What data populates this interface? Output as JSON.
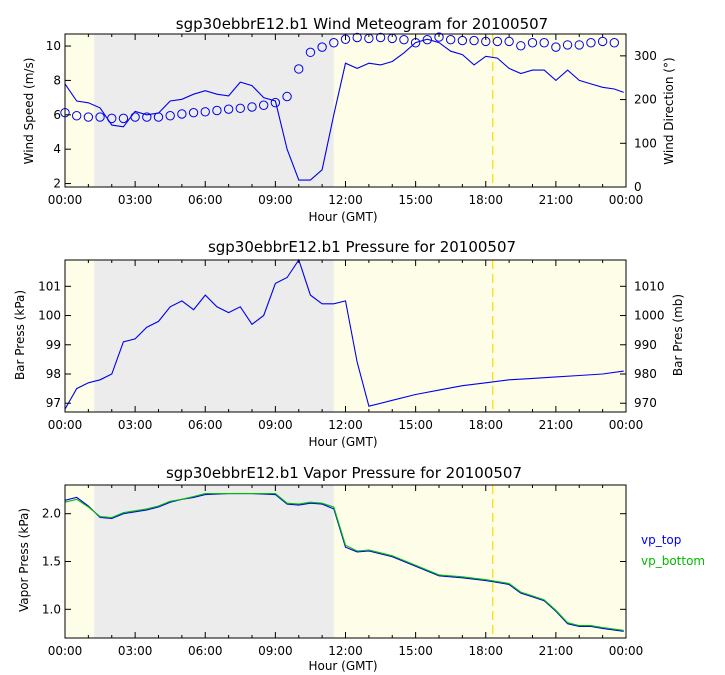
{
  "chart_data": [
    {
      "type": "line",
      "title": "sgp30ebbrE12.b1 Wind Meteogram for 20100507",
      "xlabel": "Hour (GMT)",
      "ylabel": "Wind Speed (m/s)",
      "ylabel_right": "Wind Direction (°)",
      "x_ticks": [
        "00:00",
        "03:00",
        "06:00",
        "09:00",
        "12:00",
        "15:00",
        "18:00",
        "21:00",
        "00:00"
      ],
      "y_ticks": [
        "2",
        "4",
        "6",
        "8",
        "10"
      ],
      "y_ticks_right": [
        "0",
        "100",
        "200",
        "300"
      ],
      "xlim": [
        0,
        24
      ],
      "ylim": [
        1.8,
        10.7
      ],
      "ylim_right": [
        0,
        350
      ],
      "shading": {
        "night_gray": [
          1.25,
          11.5
        ],
        "day_yellow": [
          [
            0,
            1.25
          ],
          [
            11.5,
            24
          ]
        ],
        "gray_color": "#ececec",
        "yellow_color": "#fefee8"
      },
      "marker_line_x": 18.3,
      "marker_color": "#ffd700",
      "series": [
        {
          "name": "Wind Speed",
          "style": "line",
          "color": "#0000ee",
          "x": [
            0,
            0.5,
            1,
            1.5,
            2,
            2.5,
            3,
            3.5,
            4,
            4.5,
            5,
            5.5,
            6,
            6.5,
            7,
            7.5,
            8,
            8.5,
            9,
            9.5,
            10,
            10.5,
            11,
            11.5,
            12,
            12.5,
            13,
            13.5,
            14,
            14.5,
            15,
            15.5,
            16,
            16.5,
            17,
            17.5,
            18,
            18.5,
            19,
            19.5,
            20,
            20.5,
            21,
            21.5,
            22,
            22.5,
            23,
            23.5,
            23.9
          ],
          "values": [
            7.8,
            6.8,
            6.7,
            6.4,
            5.4,
            5.3,
            6.2,
            6.0,
            6.1,
            6.8,
            6.9,
            7.2,
            7.4,
            7.2,
            7.1,
            7.9,
            7.7,
            7.0,
            6.8,
            4.0,
            2.2,
            2.2,
            2.8,
            6.0,
            9.0,
            8.7,
            9.0,
            8.9,
            9.1,
            9.6,
            10.2,
            10.4,
            10.2,
            9.7,
            9.5,
            8.9,
            9.4,
            9.3,
            8.7,
            8.4,
            8.6,
            8.6,
            8.0,
            8.6,
            8.0,
            7.8,
            7.6,
            7.5,
            7.3
          ]
        },
        {
          "name": "Wind Direction",
          "style": "circles",
          "color": "#0000ee",
          "axis": "right",
          "x": [
            0,
            0.5,
            1,
            1.5,
            2,
            2.5,
            3,
            3.5,
            4,
            4.5,
            5,
            5.5,
            6,
            6.5,
            7,
            7.5,
            8,
            8.5,
            9,
            9.5,
            10,
            10.5,
            11,
            11.5,
            12,
            12.5,
            13,
            13.5,
            14,
            14.5,
            15,
            15.5,
            16,
            16.5,
            17,
            17.5,
            18,
            18.5,
            19,
            19.5,
            20,
            20.5,
            21,
            21.5,
            22,
            22.5,
            23,
            23.5
          ],
          "values": [
            170,
            163,
            160,
            160,
            157,
            157,
            160,
            160,
            160,
            163,
            167,
            170,
            172,
            175,
            178,
            180,
            183,
            187,
            193,
            207,
            270,
            308,
            320,
            330,
            338,
            342,
            340,
            342,
            340,
            337,
            330,
            337,
            343,
            337,
            335,
            335,
            333,
            333,
            333,
            323,
            330,
            330,
            320,
            325,
            325,
            330,
            333,
            330
          ]
        }
      ]
    },
    {
      "type": "line",
      "title": "sgp30ebbrE12.b1 Pressure for 20100507",
      "xlabel": "Hour (GMT)",
      "ylabel": "Bar Press (kPa)",
      "ylabel_right": "Bar Pres (mb)",
      "x_ticks": [
        "00:00",
        "03:00",
        "06:00",
        "09:00",
        "12:00",
        "15:00",
        "18:00",
        "21:00",
        "00:00"
      ],
      "y_ticks": [
        "97",
        "98",
        "99",
        "100",
        "101"
      ],
      "y_ticks_right": [
        "970",
        "980",
        "990",
        "1000",
        "1010"
      ],
      "xlim": [
        0,
        24
      ],
      "ylim": [
        96.7,
        101.9
      ],
      "ylim_right": [
        967,
        1019
      ],
      "shading": {
        "night_gray": [
          1.25,
          11.5
        ],
        "day_yellow": [
          [
            0,
            1.25
          ],
          [
            11.5,
            24
          ]
        ],
        "gray_color": "#ececec",
        "yellow_color": "#fefee8"
      },
      "marker_line_x": 18.3,
      "marker_color": "#ffd700",
      "series": [
        {
          "name": "Bar Press",
          "style": "line",
          "color": "#0000ee",
          "x": [
            0,
            0.5,
            1,
            1.5,
            2,
            2.5,
            3,
            3.5,
            4,
            4.5,
            5,
            5.5,
            6,
            6.5,
            7,
            7.5,
            8,
            8.5,
            9,
            9.5,
            10,
            10.5,
            11,
            11.5,
            12,
            12.5,
            13,
            14,
            15,
            16,
            17,
            18,
            19,
            20,
            21,
            22,
            23,
            23.9
          ],
          "values": [
            96.8,
            97.5,
            97.7,
            97.8,
            98.0,
            99.1,
            99.2,
            99.6,
            99.8,
            100.3,
            100.5,
            100.2,
            100.7,
            100.3,
            100.1,
            100.3,
            99.7,
            100.0,
            101.1,
            101.3,
            101.9,
            100.7,
            100.4,
            100.4,
            100.5,
            98.4,
            96.9,
            97.1,
            97.3,
            97.45,
            97.6,
            97.7,
            97.8,
            97.85,
            97.9,
            97.95,
            98.0,
            98.1
          ]
        }
      ]
    },
    {
      "type": "line",
      "title": "sgp30ebbrE12.b1 Vapor Pressure for 20100507",
      "xlabel": "Hour (GMT)",
      "ylabel": "Vapor Press (kPa)",
      "x_ticks": [
        "00:00",
        "03:00",
        "06:00",
        "09:00",
        "12:00",
        "15:00",
        "18:00",
        "21:00",
        "00:00"
      ],
      "y_ticks": [
        "1.0",
        "1.5",
        "2.0"
      ],
      "xlim": [
        0,
        24
      ],
      "ylim": [
        0.7,
        2.3
      ],
      "shading": {
        "night_gray": [
          1.25,
          11.5
        ],
        "day_yellow": [
          [
            0,
            1.25
          ],
          [
            11.5,
            24
          ]
        ],
        "gray_color": "#ececec",
        "yellow_color": "#fefee8"
      },
      "marker_line_x": 18.3,
      "marker_color": "#ffd700",
      "legend": "right",
      "series": [
        {
          "name": "vp_top",
          "style": "line",
          "color": "#0000ee",
          "x": [
            0,
            0.5,
            1,
            1.5,
            2,
            2.5,
            3,
            3.5,
            4,
            4.5,
            5,
            5.5,
            6,
            7,
            8,
            9,
            9.5,
            10,
            10.5,
            11,
            11.5,
            12,
            12.5,
            13,
            14,
            15,
            16,
            17,
            18,
            18.5,
            19,
            19.5,
            20,
            20.5,
            21,
            21.5,
            22,
            22.5,
            23,
            23.9
          ],
          "values": [
            2.14,
            2.17,
            2.08,
            1.96,
            1.95,
            2.0,
            2.02,
            2.04,
            2.07,
            2.12,
            2.15,
            2.17,
            2.2,
            2.21,
            2.21,
            2.2,
            2.1,
            2.09,
            2.11,
            2.1,
            2.05,
            1.65,
            1.6,
            1.61,
            1.55,
            1.45,
            1.35,
            1.33,
            1.3,
            1.28,
            1.26,
            1.17,
            1.13,
            1.09,
            0.98,
            0.85,
            0.82,
            0.82,
            0.8,
            0.77
          ]
        },
        {
          "name": "vp_bottom",
          "style": "line",
          "color": "#00bb00",
          "x": [
            0,
            0.5,
            1,
            1.5,
            2,
            2.5,
            3,
            3.5,
            4,
            4.5,
            5,
            5.5,
            6,
            7,
            8,
            9,
            9.5,
            10,
            10.5,
            11,
            11.5,
            12,
            12.5,
            13,
            14,
            15,
            16,
            17,
            18,
            18.5,
            19,
            19.5,
            20,
            20.5,
            21,
            21.5,
            22,
            22.5,
            23,
            23.9
          ],
          "values": [
            2.12,
            2.15,
            2.07,
            1.97,
            1.96,
            2.01,
            2.03,
            2.05,
            2.08,
            2.13,
            2.15,
            2.18,
            2.21,
            2.21,
            2.21,
            2.21,
            2.11,
            2.1,
            2.12,
            2.11,
            2.07,
            1.67,
            1.61,
            1.62,
            1.56,
            1.46,
            1.36,
            1.34,
            1.31,
            1.29,
            1.27,
            1.18,
            1.14,
            1.1,
            0.99,
            0.86,
            0.83,
            0.83,
            0.81,
            0.78
          ]
        }
      ]
    }
  ]
}
